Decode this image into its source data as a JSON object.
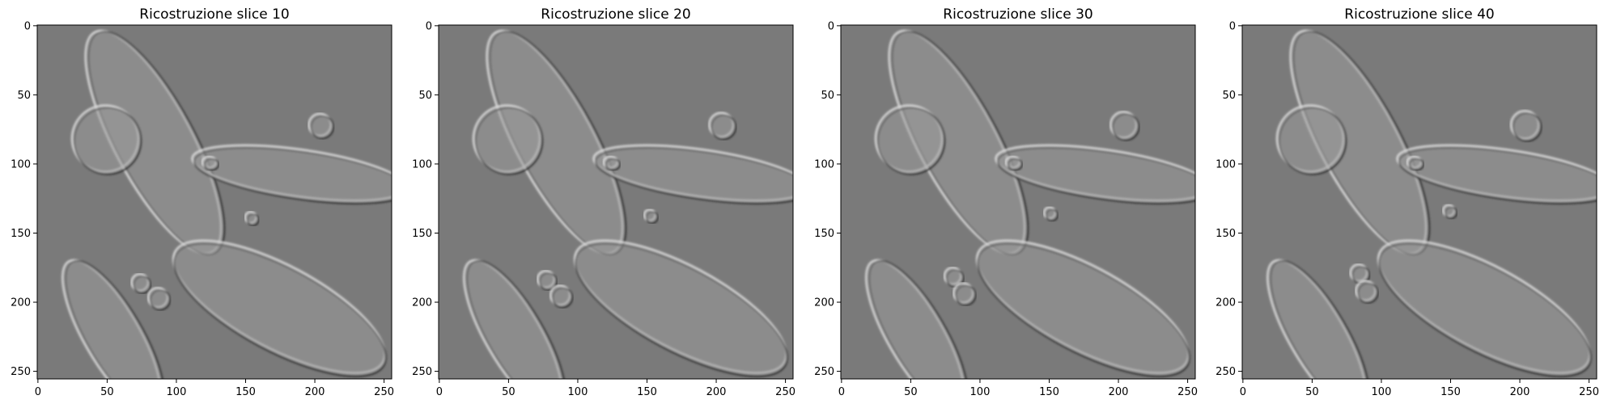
{
  "figure": {
    "panels": [
      {
        "title": "Ricostruzione slice 10",
        "slice": 10
      },
      {
        "title": "Ricostruzione slice 20",
        "slice": 20
      },
      {
        "title": "Ricostruzione slice 30",
        "slice": 30
      },
      {
        "title": "Ricostruzione slice 40",
        "slice": 40
      }
    ],
    "x_ticks": [
      "0",
      "50",
      "100",
      "150",
      "200",
      "250"
    ],
    "y_ticks": [
      "0",
      "50",
      "100",
      "150",
      "200",
      "250"
    ],
    "background_gray": "#7a7a7a",
    "shape_gray": "#9a9a9a",
    "edge_light": "#d8d8d8",
    "edge_dark": "#2a2a2a"
  }
}
